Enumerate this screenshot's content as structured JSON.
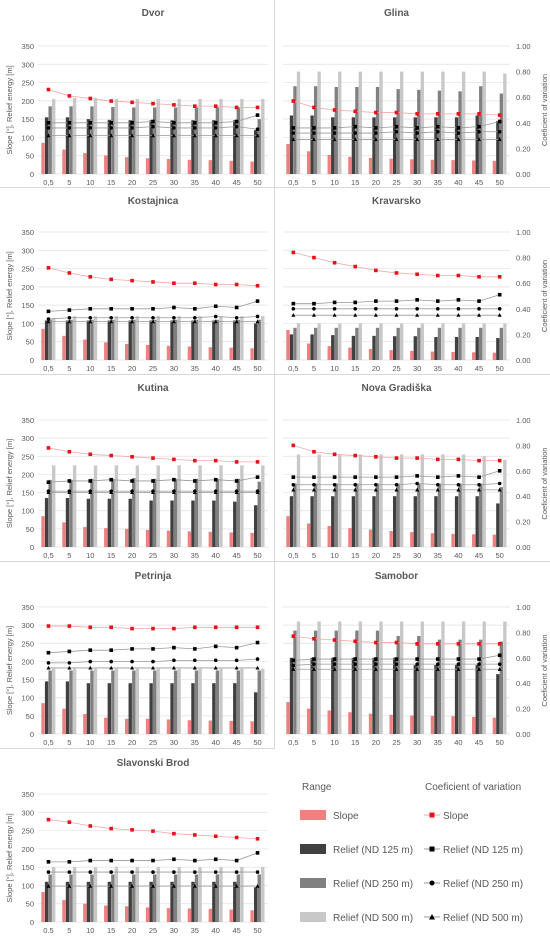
{
  "x_ticks": [
    "0,5",
    "5",
    "10",
    "15",
    "20",
    "25",
    "30",
    "35",
    "40",
    "45",
    "50"
  ],
  "colors": {
    "slope_bar": "#f08080",
    "relief125_bar": "#404040",
    "relief250_bar": "#808080",
    "relief500_bar": "#c8c8c8",
    "slope_cv": "#e8101a",
    "relief_cv": "#000000",
    "relief_cv_line": "#999999",
    "slope_cv_line": "#f4a8a8",
    "grid": "#e0e0e0",
    "text": "#595959"
  },
  "legend": {
    "range_title": "Range",
    "cv_title": "Coeficient of variation",
    "range_items": [
      "Slope",
      "Relief (ND 125 m)",
      "Relief (ND 250 m)",
      "Relief (ND 500 m)"
    ],
    "cv_items": [
      "Slope",
      "Relief (ND 125 m)",
      "Relief (ND 250 m)",
      "Relief (ND 500 m)"
    ]
  },
  "chart_data": [
    {
      "type": "bar",
      "title": "Dvor",
      "x_ticks_override": [
        "0,5",
        "5",
        "10",
        "15",
        "20",
        "25",
        "30",
        "35",
        "40",
        "45",
        "50"
      ],
      "ylabel": "Slope [°], Relief energy [m]",
      "ylim": [
        0,
        350
      ],
      "y2lim": [
        0,
        1
      ],
      "y2label": "",
      "slope": [
        85,
        67,
        57,
        51,
        46,
        43,
        41,
        39,
        38,
        36,
        34
      ],
      "relief125": [
        155,
        155,
        150,
        148,
        147,
        147,
        147,
        147,
        147,
        147,
        120
      ],
      "relief250": [
        185,
        185,
        185,
        183,
        182,
        182,
        182,
        182,
        182,
        182,
        150
      ],
      "relief500": [
        205,
        208,
        208,
        205,
        205,
        205,
        205,
        205,
        205,
        205,
        205
      ],
      "cv_slope": [
        0.66,
        0.61,
        0.59,
        0.57,
        0.56,
        0.55,
        0.54,
        0.53,
        0.53,
        0.52,
        0.52
      ],
      "cv_relief125": [
        0.4,
        0.4,
        0.4,
        0.4,
        0.4,
        0.41,
        0.4,
        0.4,
        0.4,
        0.41,
        0.46
      ],
      "cv_relief250": [
        0.36,
        0.36,
        0.36,
        0.36,
        0.36,
        0.37,
        0.36,
        0.36,
        0.36,
        0.37,
        0.35
      ],
      "cv_relief500": [
        0.3,
        0.3,
        0.3,
        0.3,
        0.3,
        0.3,
        0.3,
        0.3,
        0.3,
        0.3,
        0.3
      ]
    },
    {
      "type": "bar",
      "title": "Glina",
      "ylabel": "",
      "ylim": [
        0,
        350
      ],
      "y2lim": [
        0,
        1
      ],
      "y2label": "Coeficient of variation",
      "slope": [
        82,
        62,
        52,
        47,
        44,
        42,
        40,
        39,
        38,
        37,
        36
      ],
      "relief125": [
        160,
        160,
        155,
        155,
        155,
        155,
        155,
        155,
        155,
        160,
        145
      ],
      "relief250": [
        240,
        240,
        238,
        238,
        238,
        232,
        230,
        228,
        226,
        240,
        220
      ],
      "relief500": [
        280,
        280,
        280,
        280,
        280,
        280,
        280,
        280,
        280,
        280,
        275
      ],
      "cv_slope": [
        0.57,
        0.52,
        0.5,
        0.49,
        0.48,
        0.48,
        0.47,
        0.47,
        0.47,
        0.47,
        0.46
      ],
      "cv_relief125": [
        0.36,
        0.36,
        0.36,
        0.37,
        0.36,
        0.37,
        0.36,
        0.37,
        0.36,
        0.37,
        0.41
      ],
      "cv_relief250": [
        0.32,
        0.32,
        0.32,
        0.32,
        0.32,
        0.33,
        0.32,
        0.33,
        0.32,
        0.33,
        0.33
      ],
      "cv_relief500": [
        0.27,
        0.27,
        0.27,
        0.27,
        0.27,
        0.27,
        0.27,
        0.27,
        0.27,
        0.27,
        0.27
      ]
    },
    {
      "type": "bar",
      "title": "Kostajnica",
      "ylabel": "Slope [°], Relief energy [m]",
      "ylim": [
        0,
        350
      ],
      "y2lim": [
        0,
        1
      ],
      "y2label": "",
      "slope": [
        85,
        66,
        56,
        48,
        44,
        41,
        39,
        37,
        35,
        34,
        32
      ],
      "relief125": [
        108,
        108,
        108,
        108,
        108,
        108,
        108,
        108,
        108,
        108,
        100
      ],
      "relief250": [
        110,
        110,
        110,
        110,
        110,
        110,
        110,
        110,
        110,
        110,
        110
      ],
      "relief500": [
        115,
        120,
        120,
        120,
        120,
        120,
        120,
        120,
        120,
        120,
        120
      ],
      "cv_slope": [
        0.72,
        0.68,
        0.65,
        0.63,
        0.62,
        0.61,
        0.6,
        0.6,
        0.59,
        0.59,
        0.58
      ],
      "cv_relief125": [
        0.38,
        0.39,
        0.4,
        0.4,
        0.4,
        0.4,
        0.41,
        0.4,
        0.42,
        0.41,
        0.46
      ],
      "cv_relief250": [
        0.32,
        0.33,
        0.33,
        0.33,
        0.33,
        0.33,
        0.33,
        0.33,
        0.34,
        0.33,
        0.34
      ],
      "cv_relief500": [
        0.3,
        0.3,
        0.3,
        0.3,
        0.3,
        0.3,
        0.3,
        0.3,
        0.3,
        0.3,
        0.3
      ]
    },
    {
      "type": "bar",
      "title": "Kravarsko",
      "ylabel": "",
      "ylim": [
        0,
        350
      ],
      "y2lim": [
        0,
        1
      ],
      "y2label": "Coeficient of variation",
      "slope": [
        82,
        45,
        38,
        34,
        30,
        27,
        25,
        23,
        22,
        21,
        20
      ],
      "relief125": [
        70,
        70,
        68,
        66,
        66,
        65,
        65,
        63,
        63,
        63,
        60
      ],
      "relief250": [
        88,
        88,
        88,
        88,
        88,
        88,
        88,
        88,
        88,
        88,
        88
      ],
      "relief500": [
        100,
        100,
        100,
        100,
        100,
        100,
        100,
        100,
        100,
        100,
        100
      ],
      "cv_slope": [
        0.84,
        0.8,
        0.76,
        0.73,
        0.7,
        0.68,
        0.67,
        0.66,
        0.66,
        0.65,
        0.65
      ],
      "cv_relief125": [
        0.44,
        0.44,
        0.45,
        0.45,
        0.46,
        0.46,
        0.47,
        0.46,
        0.47,
        0.46,
        0.51
      ],
      "cv_relief250": [
        0.4,
        0.4,
        0.4,
        0.4,
        0.4,
        0.4,
        0.4,
        0.4,
        0.4,
        0.4,
        0.4
      ],
      "cv_relief500": [
        0.35,
        0.35,
        0.35,
        0.35,
        0.35,
        0.35,
        0.35,
        0.35,
        0.35,
        0.35,
        0.35
      ]
    },
    {
      "type": "bar",
      "title": "Kutina",
      "ylabel": "Slope [°], Relief energy [m]",
      "ylim": [
        0,
        350
      ],
      "y2lim": [
        0,
        1
      ],
      "y2label": "",
      "slope": [
        85,
        68,
        55,
        52,
        50,
        47,
        45,
        43,
        42,
        40,
        39
      ],
      "relief125": [
        135,
        135,
        133,
        133,
        133,
        128,
        128,
        128,
        128,
        125,
        115
      ],
      "relief250": [
        185,
        185,
        188,
        188,
        190,
        188,
        188,
        188,
        188,
        188,
        180
      ],
      "relief500": [
        225,
        225,
        225,
        225,
        225,
        225,
        225,
        225,
        225,
        225,
        225
      ],
      "cv_slope": [
        0.78,
        0.75,
        0.73,
        0.72,
        0.71,
        0.7,
        0.69,
        0.68,
        0.68,
        0.67,
        0.67
      ],
      "cv_relief125": [
        0.51,
        0.52,
        0.52,
        0.53,
        0.52,
        0.52,
        0.53,
        0.52,
        0.53,
        0.52,
        0.55
      ],
      "cv_relief250": [
        0.44,
        0.44,
        0.44,
        0.44,
        0.44,
        0.44,
        0.44,
        0.44,
        0.44,
        0.44,
        0.44
      ],
      "cv_relief500": [
        0.43,
        0.43,
        0.43,
        0.43,
        0.43,
        0.43,
        0.43,
        0.43,
        0.43,
        0.43,
        0.43
      ]
    },
    {
      "type": "bar",
      "title": "Nova Gradiška",
      "ylabel": "",
      "ylim": [
        0,
        350
      ],
      "y2lim": [
        0,
        1
      ],
      "y2label": "Coeficient of variation",
      "slope": [
        85,
        65,
        58,
        52,
        48,
        44,
        41,
        38,
        36,
        35,
        34
      ],
      "relief125": [
        140,
        140,
        140,
        140,
        140,
        140,
        140,
        140,
        140,
        140,
        120
      ],
      "relief250": [
        175,
        175,
        175,
        175,
        175,
        175,
        175,
        175,
        175,
        175,
        165
      ],
      "relief500": [
        255,
        255,
        255,
        255,
        255,
        255,
        255,
        255,
        255,
        250,
        240
      ],
      "cv_slope": [
        0.8,
        0.75,
        0.73,
        0.72,
        0.71,
        0.7,
        0.7,
        0.69,
        0.69,
        0.68,
        0.68
      ],
      "cv_relief125": [
        0.55,
        0.55,
        0.55,
        0.55,
        0.55,
        0.55,
        0.56,
        0.55,
        0.56,
        0.55,
        0.6
      ],
      "cv_relief250": [
        0.49,
        0.49,
        0.49,
        0.49,
        0.49,
        0.49,
        0.5,
        0.49,
        0.49,
        0.49,
        0.5
      ],
      "cv_relief500": [
        0.45,
        0.45,
        0.45,
        0.45,
        0.45,
        0.45,
        0.45,
        0.45,
        0.45,
        0.45,
        0.45
      ]
    },
    {
      "type": "bar",
      "title": "Petrinja",
      "ylabel": "Slope [°], Relief energy [m]",
      "ylim": [
        0,
        350
      ],
      "y2lim": [
        0,
        1
      ],
      "y2label": "",
      "slope": [
        85,
        70,
        55,
        45,
        42,
        42,
        40,
        38,
        37,
        36,
        35
      ],
      "relief125": [
        145,
        145,
        140,
        140,
        140,
        140,
        140,
        140,
        140,
        140,
        115
      ],
      "relief250": [
        175,
        175,
        175,
        175,
        175,
        175,
        175,
        175,
        175,
        175,
        175
      ],
      "relief500": [
        180,
        180,
        180,
        180,
        180,
        180,
        180,
        180,
        180,
        180,
        180
      ],
      "cv_slope": [
        0.85,
        0.85,
        0.84,
        0.84,
        0.83,
        0.83,
        0.83,
        0.84,
        0.84,
        0.84,
        0.84
      ],
      "cv_relief125": [
        0.64,
        0.65,
        0.66,
        0.66,
        0.67,
        0.67,
        0.68,
        0.67,
        0.69,
        0.68,
        0.72
      ],
      "cv_relief250": [
        0.56,
        0.56,
        0.57,
        0.57,
        0.57,
        0.57,
        0.58,
        0.58,
        0.58,
        0.58,
        0.59
      ],
      "cv_relief500": [
        0.52,
        0.52,
        0.52,
        0.52,
        0.52,
        0.52,
        0.52,
        0.52,
        0.52,
        0.52,
        0.52
      ]
    },
    {
      "type": "bar",
      "title": "Samobor",
      "ylabel": "",
      "ylim": [
        0,
        350
      ],
      "y2lim": [
        0,
        1
      ],
      "y2label": "Coeficient of variation",
      "slope": [
        88,
        70,
        65,
        60,
        56,
        53,
        51,
        50,
        49,
        47,
        45
      ],
      "relief125": [
        210,
        210,
        210,
        210,
        210,
        210,
        190,
        190,
        190,
        190,
        165
      ],
      "relief250": [
        285,
        285,
        285,
        285,
        285,
        270,
        270,
        260,
        260,
        260,
        255
      ],
      "relief500": [
        310,
        310,
        310,
        310,
        310,
        310,
        310,
        310,
        310,
        310,
        310
      ],
      "cv_slope": [
        0.77,
        0.75,
        0.74,
        0.73,
        0.72,
        0.72,
        0.71,
        0.71,
        0.71,
        0.71,
        0.71
      ],
      "cv_relief125": [
        0.58,
        0.59,
        0.59,
        0.59,
        0.59,
        0.59,
        0.59,
        0.59,
        0.59,
        0.59,
        0.62
      ],
      "cv_relief250": [
        0.54,
        0.55,
        0.55,
        0.55,
        0.55,
        0.55,
        0.55,
        0.55,
        0.55,
        0.55,
        0.55
      ],
      "cv_relief500": [
        0.51,
        0.51,
        0.51,
        0.51,
        0.51,
        0.51,
        0.51,
        0.51,
        0.51,
        0.51,
        0.51
      ]
    },
    {
      "type": "bar",
      "title": "Slavonski Brod",
      "ylabel": "Slope [°], Relief energy [m]",
      "ylim": [
        0,
        350
      ],
      "y2lim": [
        0,
        1
      ],
      "y2label": "",
      "x_ticks_override": [
        "0.5",
        "5",
        "10",
        "15",
        "20",
        "25",
        "30",
        "35",
        "40",
        "45",
        "50"
      ],
      "slope": [
        82,
        60,
        50,
        45,
        43,
        40,
        38,
        37,
        36,
        34,
        32
      ],
      "relief125": [
        110,
        110,
        110,
        110,
        110,
        110,
        110,
        110,
        110,
        110,
        95
      ],
      "relief250": [
        130,
        130,
        130,
        130,
        130,
        130,
        130,
        130,
        130,
        130,
        130
      ],
      "relief500": [
        150,
        150,
        150,
        150,
        150,
        150,
        150,
        150,
        150,
        150,
        150
      ],
      "cv_slope": [
        0.8,
        0.78,
        0.75,
        0.73,
        0.72,
        0.71,
        0.69,
        0.68,
        0.67,
        0.66,
        0.65
      ],
      "cv_relief125": [
        0.47,
        0.47,
        0.48,
        0.48,
        0.48,
        0.48,
        0.49,
        0.48,
        0.49,
        0.48,
        0.54
      ],
      "cv_relief250": [
        0.39,
        0.39,
        0.39,
        0.39,
        0.39,
        0.39,
        0.39,
        0.39,
        0.39,
        0.39,
        0.39
      ],
      "cv_relief500": [
        0.28,
        0.28,
        0.28,
        0.28,
        0.28,
        0.28,
        0.28,
        0.28,
        0.28,
        0.28,
        0.28
      ]
    }
  ]
}
